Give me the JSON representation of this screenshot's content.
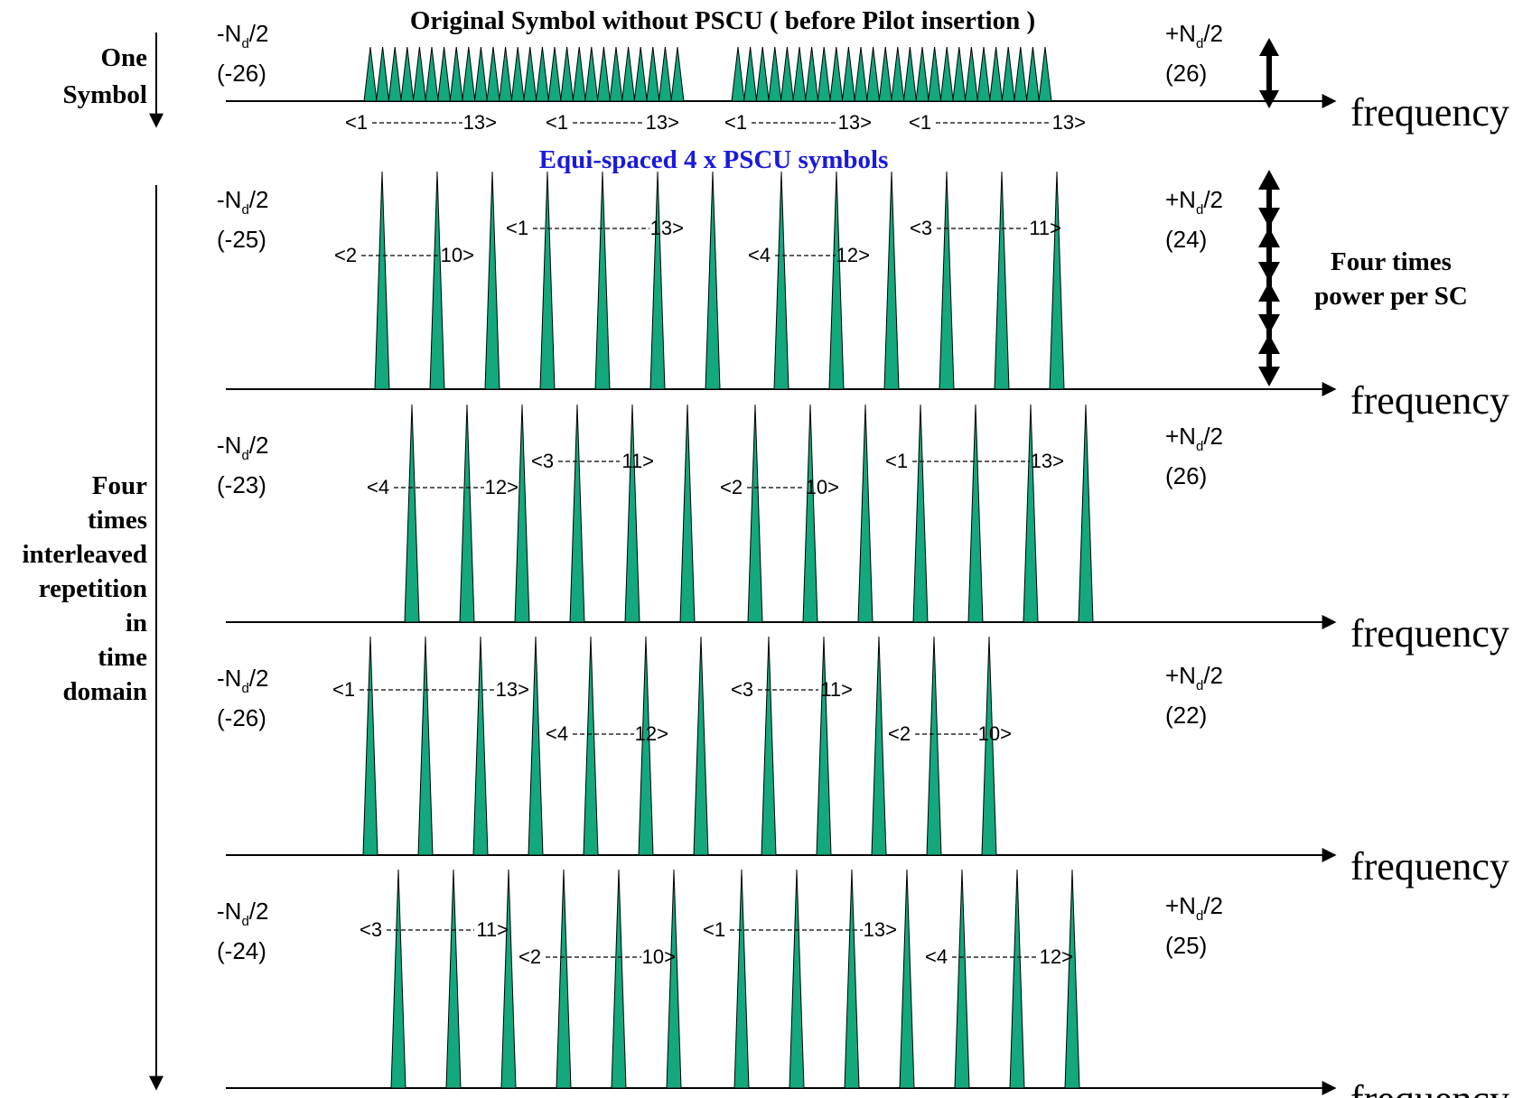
{
  "title": "Original Symbol without PSCU ( before Pilot insertion )",
  "subtitle": "Equi-spaced 4 x PSCU symbols",
  "left_labels": {
    "one_symbol": [
      "One",
      "Symbol"
    ],
    "four_times": [
      "Four",
      "times",
      "interleaved",
      "repetition",
      "in",
      "time",
      "domain"
    ]
  },
  "power_note": [
    "Four times",
    "power per SC"
  ],
  "axis_label": "frequency",
  "colors": {
    "subcarrier_fill": "#13a87e",
    "text": "#000000",
    "subtitle": "#1a1adb"
  },
  "rows": [
    {
      "left_sign": "-N",
      "left_sub": "d",
      "left_tail": "/2",
      "left_value": "(-26)",
      "right_sign": "+N",
      "right_sub": "d",
      "right_tail": "/2",
      "right_value": "(26)",
      "groups": [
        {
          "start": "<1",
          "end": "13>"
        },
        {
          "start": "<1",
          "end": "13>"
        },
        {
          "start": "<1",
          "end": "13>"
        },
        {
          "start": "<1",
          "end": "13>"
        }
      ]
    },
    {
      "left_sign": "-N",
      "left_sub": "d",
      "left_tail": "/2",
      "left_value": "(-25)",
      "right_sign": "+N",
      "right_sub": "d",
      "right_tail": "/2",
      "right_value": "(24)",
      "groups": [
        {
          "start": "<2",
          "end": "10>"
        },
        {
          "start": "<1",
          "end": "13>"
        },
        {
          "start": "<4",
          "end": "12>"
        },
        {
          "start": "<3",
          "end": "11>"
        }
      ]
    },
    {
      "left_sign": "-N",
      "left_sub": "d",
      "left_tail": "/2",
      "left_value": "(-23)",
      "right_sign": "+N",
      "right_sub": "d",
      "right_tail": "/2",
      "right_value": "(26)",
      "groups": [
        {
          "start": "<4",
          "end": "12>"
        },
        {
          "start": "<3",
          "end": "11>"
        },
        {
          "start": "<2",
          "end": "10>"
        },
        {
          "start": "<1",
          "end": "13>"
        }
      ]
    },
    {
      "left_sign": "-N",
      "left_sub": "d",
      "left_tail": "/2",
      "left_value": "(-26)",
      "right_sign": "+N",
      "right_sub": "d",
      "right_tail": "/2",
      "right_value": "(22)",
      "groups": [
        {
          "start": "<1",
          "end": "13>"
        },
        {
          "start": "<4",
          "end": "12>"
        },
        {
          "start": "<3",
          "end": "11>"
        },
        {
          "start": "<2",
          "end": "10>"
        }
      ]
    },
    {
      "left_sign": "-N",
      "left_sub": "d",
      "left_tail": "/2",
      "left_value": "(-24)",
      "right_sign": "+N",
      "right_sub": "d",
      "right_tail": "/2",
      "right_value": "(25)",
      "groups": [
        {
          "start": "<3",
          "end": "11>"
        },
        {
          "start": "<2",
          "end": "10>"
        },
        {
          "start": "<1",
          "end": "13>"
        },
        {
          "start": "<4",
          "end": "12>"
        }
      ]
    }
  ]
}
